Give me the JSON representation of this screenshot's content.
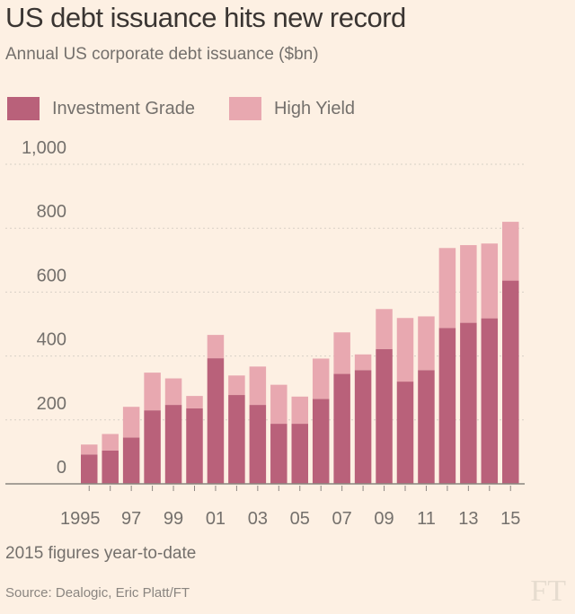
{
  "title": "US debt issuance hits new record",
  "subtitle": "Annual US corporate debt issuance ($bn)",
  "note": "2015 figures year-to-date",
  "source": "Source: Dealogic, Eric Platt/FT",
  "logo": "FT",
  "chart_data": {
    "type": "bar",
    "stacked": true,
    "title": "US debt issuance hits new record",
    "subtitle": "Annual US corporate debt issuance ($bn)",
    "xlabel": "",
    "ylabel": "",
    "ylim": [
      0,
      1000
    ],
    "yticks": [
      0,
      200,
      400,
      600,
      800,
      1000
    ],
    "ytick_labels": [
      "0",
      "200",
      "400",
      "600",
      "800",
      "1,000"
    ],
    "grid": true,
    "legend": "top-left",
    "categories": [
      "1995",
      "1996",
      "1997",
      "1998",
      "1999",
      "2000",
      "2001",
      "2002",
      "2003",
      "2004",
      "2005",
      "2006",
      "2007",
      "2008",
      "2009",
      "2010",
      "2011",
      "2012",
      "2013",
      "2014",
      "2015"
    ],
    "xtick_labels": [
      "1995",
      "",
      "97",
      "",
      "99",
      "",
      "01",
      "",
      "03",
      "",
      "05",
      "",
      "07",
      "",
      "09",
      "",
      "11",
      "",
      "13",
      "",
      "15"
    ],
    "series": [
      {
        "name": "Investment Grade",
        "color": "#b9617a",
        "values": [
          92,
          104,
          145,
          230,
          247,
          236,
          393,
          278,
          247,
          188,
          188,
          266,
          344,
          356,
          422,
          320,
          356,
          488,
          504,
          518,
          636
        ]
      },
      {
        "name": "High Yield",
        "color": "#e8a8b0",
        "values": [
          31,
          52,
          96,
          118,
          83,
          39,
          73,
          61,
          120,
          122,
          85,
          126,
          130,
          49,
          125,
          199,
          168,
          250,
          243,
          234,
          184
        ]
      }
    ]
  }
}
